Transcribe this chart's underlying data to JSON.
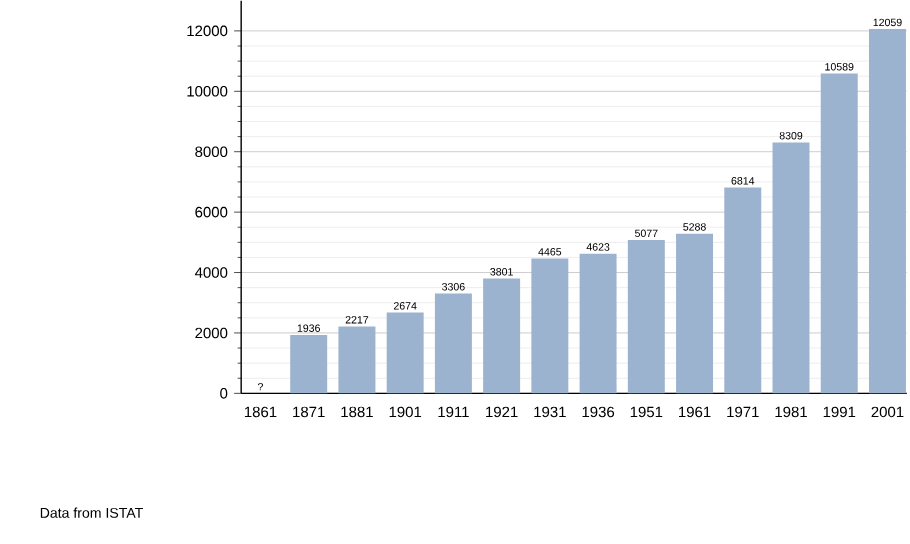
{
  "chart_data": {
    "type": "bar",
    "categories": [
      "1861",
      "1871",
      "1881",
      "1901",
      "1911",
      "1921",
      "1931",
      "1936",
      "1951",
      "1961",
      "1971",
      "1981",
      "1991",
      "2001"
    ],
    "values": [
      null,
      1936,
      2217,
      2674,
      3306,
      3801,
      4465,
      4623,
      5077,
      5288,
      6814,
      8309,
      10589,
      12059
    ],
    "value_labels": [
      "?",
      "1936",
      "2217",
      "2674",
      "3306",
      "3801",
      "4465",
      "4623",
      "5077",
      "5288",
      "6814",
      "8309",
      "10589",
      "12059"
    ],
    "color": "#9bb3cf",
    "ylim": [
      0,
      13000
    ],
    "yticks": [
      0,
      2000,
      4000,
      6000,
      8000,
      10000,
      12000
    ],
    "grid": "y",
    "annotations": [
      "Data from ISTAT"
    ]
  }
}
